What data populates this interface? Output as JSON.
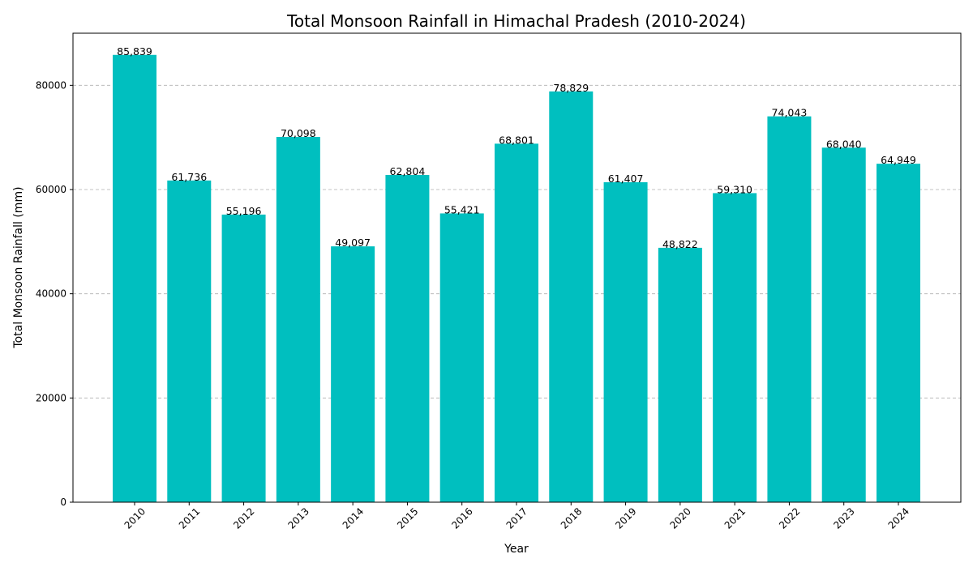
{
  "chart_data": {
    "type": "bar",
    "title": "Total Monsoon Rainfall in Himachal Pradesh (2010-2024)",
    "xlabel": "Year",
    "ylabel": "Total Monsoon Rainfall (mm)",
    "categories": [
      "2010",
      "2011",
      "2012",
      "2013",
      "2014",
      "2015",
      "2016",
      "2017",
      "2018",
      "2019",
      "2020",
      "2021",
      "2022",
      "2023",
      "2024"
    ],
    "values": [
      85839,
      61736,
      55196,
      70098,
      49097,
      62804,
      55421,
      68801,
      78829,
      61407,
      48822,
      59310,
      74043,
      68040,
      64949
    ],
    "data_labels": [
      "85,839",
      "61,736",
      "55,196",
      "70,098",
      "49,097",
      "62,804",
      "55,421",
      "68,801",
      "78,829",
      "61,407",
      "48,822",
      "59,310",
      "74,043",
      "68,040",
      "64,949"
    ],
    "y_ticks": [
      0,
      20000,
      40000,
      60000,
      80000
    ],
    "ylim": [
      0,
      90000
    ],
    "grid": "y-dashed",
    "bar_color": "#00bfbf",
    "x_tick_rotation_deg": 45
  }
}
